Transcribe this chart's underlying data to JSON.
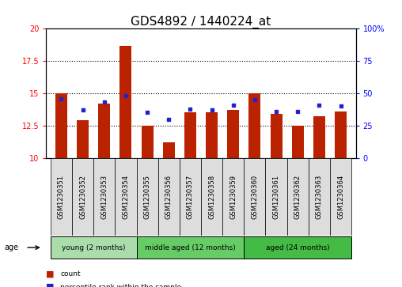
{
  "title": "GDS4892 / 1440224_at",
  "samples": [
    "GSM1230351",
    "GSM1230352",
    "GSM1230353",
    "GSM1230354",
    "GSM1230355",
    "GSM1230356",
    "GSM1230357",
    "GSM1230358",
    "GSM1230359",
    "GSM1230360",
    "GSM1230361",
    "GSM1230362",
    "GSM1230363",
    "GSM1230364"
  ],
  "counts": [
    15.0,
    12.9,
    14.2,
    18.7,
    12.5,
    11.2,
    13.5,
    13.5,
    13.7,
    15.0,
    13.4,
    12.5,
    13.2,
    13.6
  ],
  "percentiles": [
    46,
    37,
    43,
    48,
    35,
    30,
    38,
    37,
    41,
    45,
    36,
    36,
    41,
    40
  ],
  "ymin": 10,
  "ymax": 20,
  "yticks_left": [
    10,
    12.5,
    15,
    17.5,
    20
  ],
  "yticks_right": [
    0,
    25,
    50,
    75,
    100
  ],
  "bar_color": "#BB2200",
  "square_color": "#2222CC",
  "groups": [
    {
      "label": "young (2 months)",
      "start": 0,
      "end": 4,
      "color": "#AADDAA"
    },
    {
      "label": "middle aged (12 months)",
      "start": 4,
      "end": 9,
      "color": "#66CC66"
    },
    {
      "label": "aged (24 months)",
      "start": 9,
      "end": 14,
      "color": "#44BB44"
    }
  ],
  "age_label": "age",
  "legend_items": [
    {
      "color": "#BB2200",
      "label": "count"
    },
    {
      "color": "#2222CC",
      "label": "percentile rank within the sample"
    }
  ],
  "bg_color": "white",
  "title_fontsize": 11,
  "tick_fontsize": 7,
  "sample_fontsize": 6,
  "bar_width": 0.55,
  "label_bar_bottom": 10,
  "grid_yticks": [
    12.5,
    15.0,
    17.5
  ]
}
